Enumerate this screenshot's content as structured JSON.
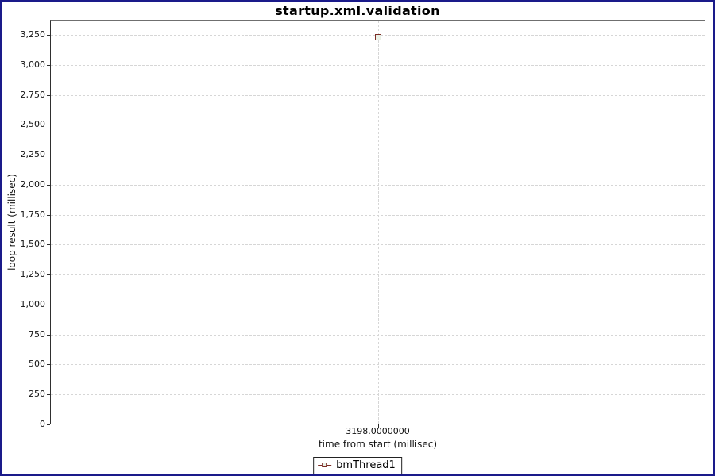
{
  "window": {
    "border_color": "#1a1a8a",
    "background": "#ffffff"
  },
  "chart_data": {
    "type": "scatter",
    "title": "startup.xml.validation",
    "xlabel": "time from start (millisec)",
    "ylabel": "loop result (millisec)",
    "xlim": [
      3197.5,
      3198.5
    ],
    "ylim": [
      0,
      3377
    ],
    "grid": "dashed",
    "grid_color": "#d6d6d6",
    "legend_position": "bottom-center",
    "x_ticks": [
      {
        "value": 3198,
        "label": "3198.0000000"
      }
    ],
    "y_ticks": [
      {
        "value": 0,
        "label": "0"
      },
      {
        "value": 250,
        "label": "250"
      },
      {
        "value": 500,
        "label": "500"
      },
      {
        "value": 750,
        "label": "750"
      },
      {
        "value": 1000,
        "label": "1,000"
      },
      {
        "value": 1250,
        "label": "1,250"
      },
      {
        "value": 1500,
        "label": "1,500"
      },
      {
        "value": 1750,
        "label": "1,750"
      },
      {
        "value": 2000,
        "label": "2,000"
      },
      {
        "value": 2250,
        "label": "2,250"
      },
      {
        "value": 2500,
        "label": "2,500"
      },
      {
        "value": 2750,
        "label": "2,750"
      },
      {
        "value": 3000,
        "label": "3,000"
      },
      {
        "value": 3250,
        "label": "3,250"
      }
    ],
    "series": [
      {
        "name": "bmThread1",
        "marker": "square",
        "line_color": "#7b2d26",
        "marker_border_color": "#7b2d26",
        "marker_fill_color": "#e9f0e6",
        "points": [
          {
            "x": 3198,
            "y": 3230
          }
        ]
      }
    ]
  }
}
